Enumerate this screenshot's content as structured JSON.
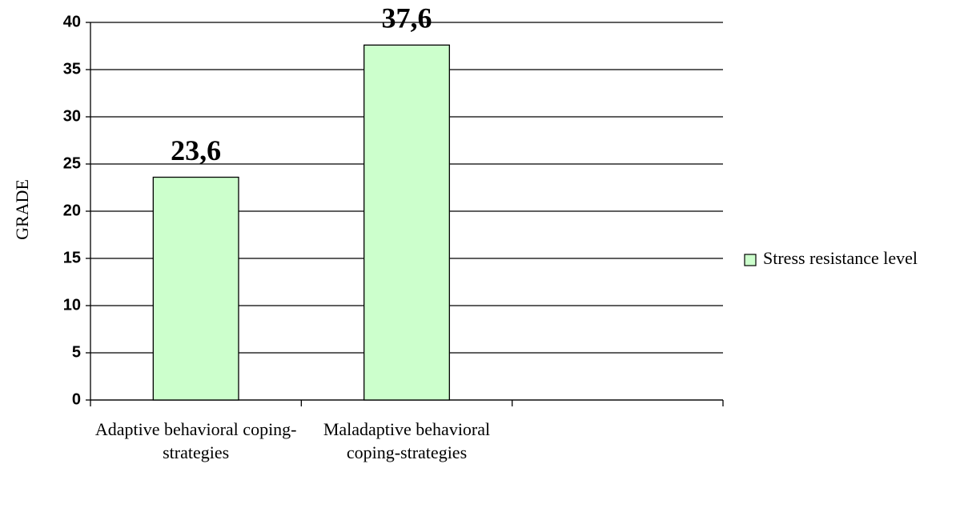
{
  "chart_data": {
    "type": "bar",
    "y_label": "GRADE",
    "categories": [
      "Adaptive behavioral coping-strategies",
      "Maladaptive behavioral coping-strategies",
      null
    ],
    "series": [
      {
        "name": "Stress resistance level",
        "color": "#ccffcc",
        "values": [
          23.6,
          37.6,
          null
        ],
        "value_labels": [
          "23,6",
          "37,6",
          null
        ]
      }
    ],
    "ylim": [
      0,
      40
    ],
    "yticks": [
      0,
      5,
      10,
      15,
      20,
      25,
      30,
      35,
      40
    ],
    "grid": true,
    "legend": "right"
  }
}
